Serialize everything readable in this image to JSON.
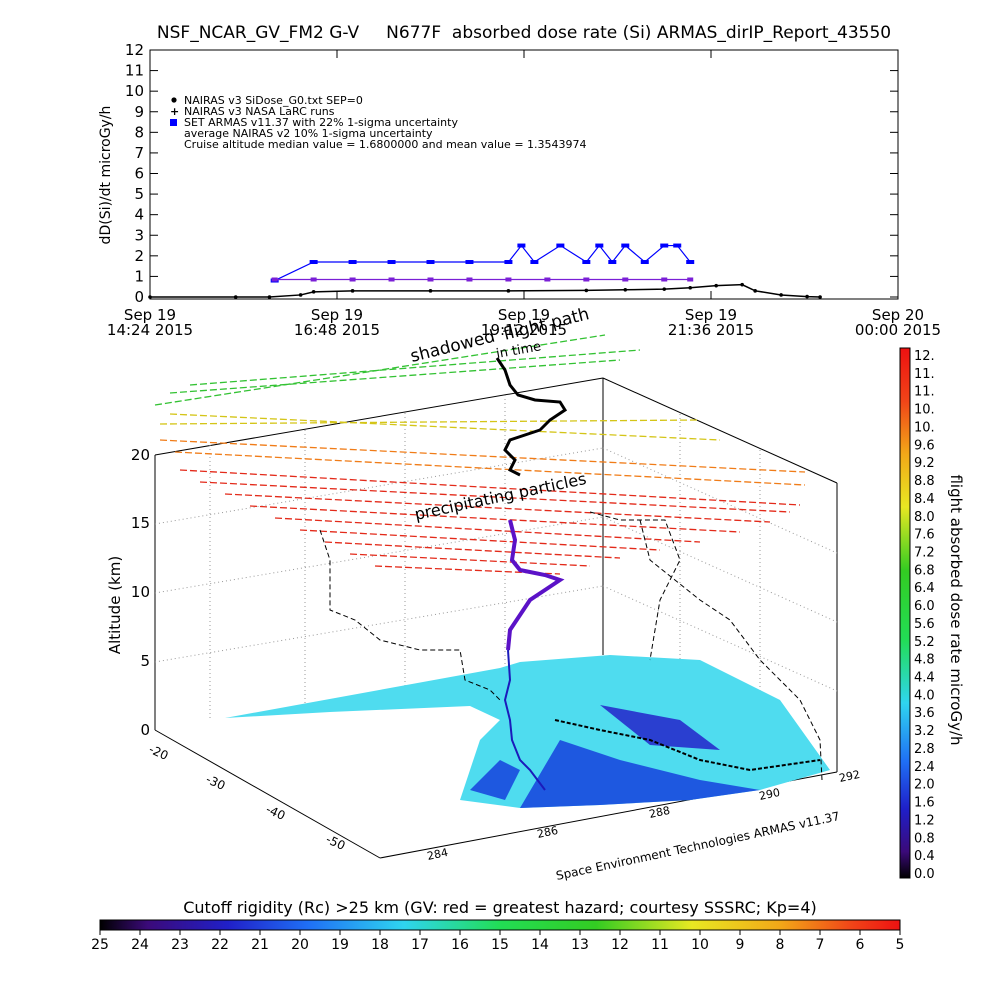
{
  "title": "NSF_NCAR_GV_FM2 G-V     N677F  absorbed dose rate (Si) ARMAS_dirIP_Report_43550",
  "chart_data": [
    {
      "type": "line",
      "ylabel": "dD(Si)/dt microGy/h",
      "ylim": [
        0,
        12
      ],
      "y_ticks": [
        "0",
        "1",
        "2",
        "3",
        "4",
        "5",
        "6",
        "7",
        "8",
        "9",
        "10",
        "11",
        "12"
      ],
      "x_ticks": [
        {
          "l1": "Sep 19",
          "l2": "14:24 2015"
        },
        {
          "l1": "Sep 19",
          "l2": "16:48 2015"
        },
        {
          "l1": "Sep 19",
          "l2": "19:12 2015"
        },
        {
          "l1": "Sep 19",
          "l2": "21:36 2015"
        },
        {
          "l1": "Sep 20",
          "l2": "00:00 2015"
        }
      ],
      "legend": [
        "NAIRAS v3 SiDose_G0.txt SEP=0",
        "NAIRAS v3 NASA LaRC runs",
        "SET ARMAS v11.37 with 22% 1-sigma uncertainty",
        "average NAIRAS v2 10% 1-sigma uncertainty",
        "Cruise altitude median value = 1.6800000 and mean value = 1.3543974"
      ],
      "series": [
        {
          "name": "NAIRAS v3 SiDose_G0.txt SEP=0",
          "color": "#000000",
          "x": [
            "14:24",
            "15:30",
            "15:56",
            "16:20",
            "16:30",
            "17:00",
            "18:00",
            "19:00",
            "20:00",
            "20:30",
            "21:00",
            "21:20",
            "21:40",
            "22:00",
            "22:10",
            "22:30",
            "22:50",
            "23:00"
          ],
          "values": [
            0,
            0,
            0,
            0.1,
            0.25,
            0.3,
            0.3,
            0.3,
            0.32,
            0.35,
            0.38,
            0.45,
            0.55,
            0.6,
            0.3,
            0.1,
            0.02,
            0
          ]
        },
        {
          "name": "SET ARMAS v11.37 with 22% 1-sigma uncertainty",
          "color": "#0000ff",
          "x": [
            "16:00",
            "16:30",
            "17:00",
            "17:30",
            "18:00",
            "18:30",
            "19:00",
            "19:10",
            "19:20",
            "19:40",
            "20:00",
            "20:10",
            "20:20",
            "20:30",
            "20:45",
            "21:00",
            "21:10",
            "21:20"
          ],
          "values": [
            0.8,
            1.7,
            1.7,
            1.7,
            1.7,
            1.7,
            1.7,
            2.5,
            1.7,
            2.5,
            1.7,
            2.5,
            1.7,
            2.5,
            1.7,
            2.5,
            2.5,
            1.7
          ]
        },
        {
          "name": "average NAIRAS v2 10% 1-sigma uncertainty",
          "color": "#7a1fd6",
          "x": [
            "16:00",
            "16:30",
            "17:00",
            "17:30",
            "18:00",
            "18:30",
            "19:00",
            "19:30",
            "20:00",
            "20:30",
            "21:00",
            "21:20"
          ],
          "values": [
            0.85,
            0.85,
            0.85,
            0.85,
            0.85,
            0.85,
            0.85,
            0.85,
            0.85,
            0.85,
            0.85,
            0.85
          ]
        }
      ]
    },
    {
      "type": "scatter",
      "zlabel": "Altitude (km)",
      "z_ticks": [
        "0",
        "5",
        "10",
        "15",
        "20"
      ],
      "lat_ticks": [
        "-20",
        "-30",
        "-40",
        "-50"
      ],
      "lon_ticks": [
        "284",
        "286",
        "288",
        "290",
        "292"
      ],
      "annotations": [
        "shadowed",
        "flight path",
        "in time",
        "precipitating particles"
      ],
      "footer": "Space Environment Technologies ARMAS v11.37",
      "series": [
        {
          "name": "flight path",
          "color": "#000000",
          "x": [
            285.9,
            286.0,
            286.1,
            286.3,
            286.5,
            286.8,
            287.1,
            287.5,
            288.0,
            288.5,
            289.1,
            289.7
          ],
          "y": [
            -12.5,
            -15.0,
            -18.0,
            -21.0,
            -24.0,
            -27.0,
            -30.0,
            -33.5,
            -37.0,
            -40.0,
            -44.0,
            -48.0
          ],
          "z": [
            0,
            2,
            5,
            8,
            11,
            12.5,
            12.6,
            12.5,
            12.6,
            12.5,
            12.4,
            12.5
          ]
        }
      ]
    }
  ],
  "colorbar_right": {
    "label": "flight absorbed dose rate microGy/h",
    "ticks": [
      "12.",
      "11.",
      "11.",
      "10.",
      "10.",
      "9.6",
      "9.2",
      "8.8",
      "8.4",
      "8.0",
      "7.6",
      "7.2",
      "6.8",
      "6.4",
      "6.0",
      "5.6",
      "5.2",
      "4.8",
      "4.4",
      "4.0",
      "3.6",
      "3.2",
      "2.8",
      "2.4",
      "2.0",
      "1.6",
      "1.2",
      "0.8",
      "0.4",
      "0.0"
    ]
  },
  "colorbar_bottom": {
    "label": "Cutoff rigidity (Rc) >25 km (GV: red = greatest hazard; courtesy SSSRC; Kp=4)",
    "ticks": [
      "25",
      "24",
      "23",
      "22",
      "21",
      "20",
      "19",
      "18",
      "17",
      "16",
      "15",
      "14",
      "13",
      "12",
      "11",
      "10",
      "9",
      "8",
      "7",
      "6",
      "5"
    ]
  },
  "colors": {
    "armas": "#0000ff",
    "nairas_v2": "#7a1fd6",
    "shelf": "#55ddee",
    "shelf_deep": "#1a4fd8",
    "track": "#000000"
  }
}
